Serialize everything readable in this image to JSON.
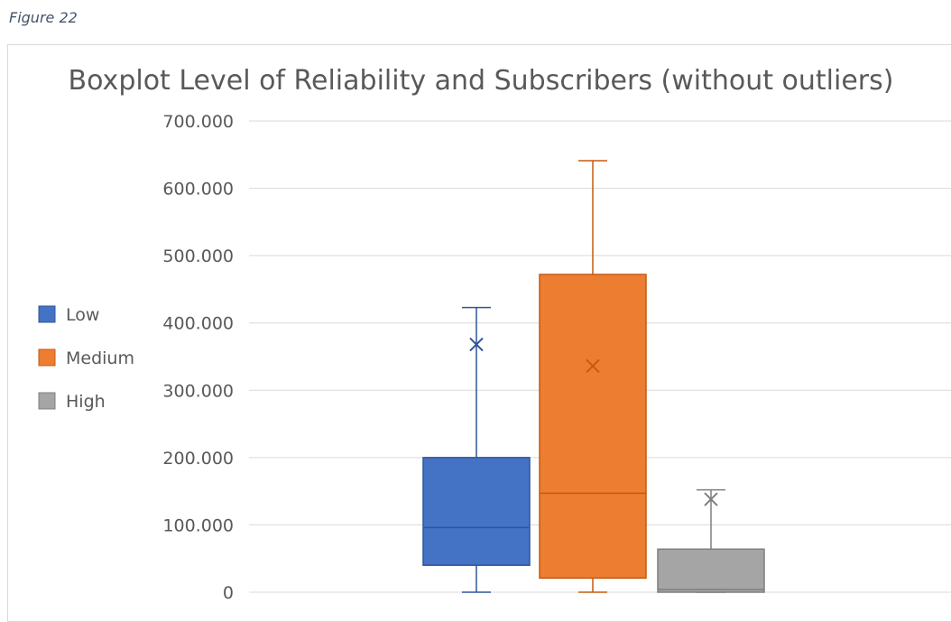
{
  "caption": "Figure 22",
  "chart_data": {
    "type": "box",
    "title": "Boxplot Level of Reliability and Subscribers (without outliers)",
    "xlabel": "",
    "ylabel": "",
    "ylim": [
      0,
      700000
    ],
    "yticks": [
      0,
      100000,
      200000,
      300000,
      400000,
      500000,
      600000,
      700000
    ],
    "ytick_labels": [
      "0",
      "100.000",
      "200.000",
      "300.000",
      "400.000",
      "500.000",
      "600.000",
      "700.000"
    ],
    "grid": true,
    "legend_position": "left",
    "series": [
      {
        "name": "Low",
        "color": "#4472c4",
        "min": 0,
        "q1": 40000,
        "median": 96000,
        "q3": 200000,
        "max": 423000,
        "mean": 368000
      },
      {
        "name": "Medium",
        "color": "#ed7d31",
        "min": 0,
        "q1": 21000,
        "median": 147000,
        "q3": 472000,
        "max": 641000,
        "mean": 336000
      },
      {
        "name": "High",
        "color": "#a5a5a5",
        "min": 0,
        "q1": 0,
        "median": 4000,
        "q3": 64000,
        "max": 152000,
        "mean": 138000
      }
    ]
  }
}
